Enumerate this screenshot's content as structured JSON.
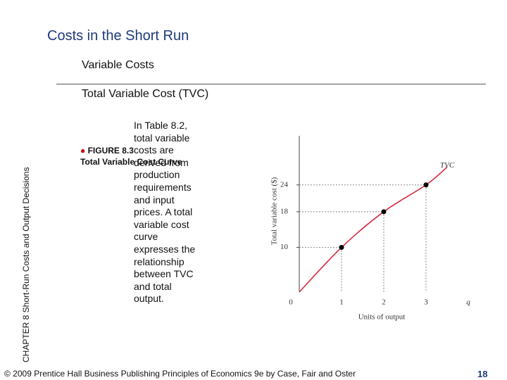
{
  "title": "Costs in the Short Run",
  "subtitle": "Variable Costs",
  "heading": "Total Variable Cost (TVC)",
  "body": "In Table 8.2, total variable costs are derived from production requirements and input prices.  A total variable cost curve expresses the relationship between TVC and total output.",
  "figure_label": "FIGURE 8.3",
  "figure_caption": "Total Variable Cost Curve",
  "side_text": "CHAPTER 8  Short-Run Costs and Output Decisions",
  "footer": "© 2009 Prentice Hall Business Publishing   Principles of Economics 9e by Case, Fair and Oster",
  "page_number": "18",
  "chart_data": {
    "type": "line",
    "xlabel": "Units of output",
    "ylabel": "Total variable cost ($)",
    "series": [
      {
        "name": "TVC",
        "color": "#d9283c",
        "x": [
          0,
          1,
          2,
          3,
          3.5
        ],
        "values": [
          0,
          10,
          18,
          24,
          28
        ]
      }
    ],
    "markers": {
      "x": [
        1,
        2,
        3
      ],
      "values": [
        10,
        18,
        24
      ],
      "color": "#000000"
    },
    "xlim": [
      0,
      4
    ],
    "ylim": [
      0,
      35
    ],
    "xticks": [
      0,
      1,
      2,
      3,
      {
        "value": 4,
        "label": "q"
      }
    ],
    "yticks": [
      10,
      18,
      24
    ]
  }
}
